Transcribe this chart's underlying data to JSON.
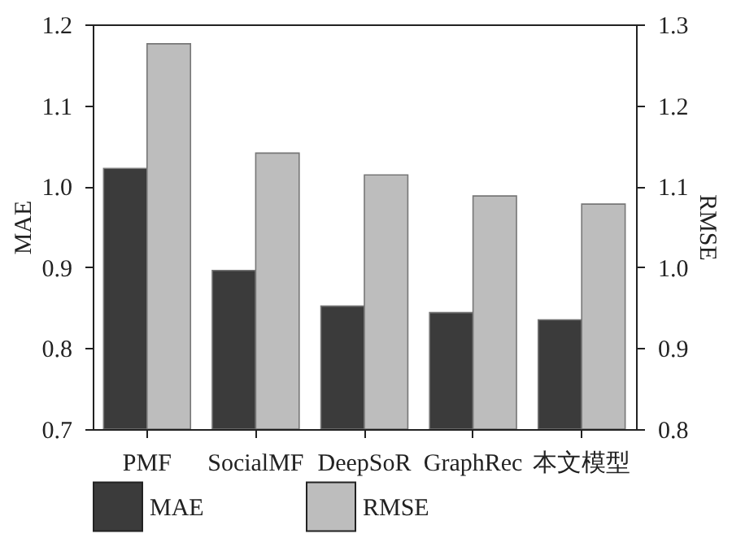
{
  "chart_data": {
    "type": "bar",
    "xlabel": null,
    "ylabel": "MAE",
    "y2label": "RMSE",
    "categories": [
      "PMF",
      "SocialMF",
      "DeepSoR",
      "GraphRec",
      "本文模型"
    ],
    "series": [
      {
        "name": "MAE",
        "color": "#3b3b3b",
        "values": [
          1.022,
          0.896,
          0.852,
          0.844,
          0.835
        ]
      },
      {
        "name": "RMSE",
        "color": "#bdbdbd",
        "axis": "y2",
        "values": [
          1.276,
          1.141,
          1.114,
          1.088,
          1.078
        ]
      }
    ],
    "ylim": [
      0.7,
      1.2
    ],
    "yticks": [
      0.7,
      0.8,
      0.9,
      {
        "value": 1,
        "label": "1.0"
      },
      1.1,
      1.2
    ],
    "y2lim": [
      0.8,
      1.3
    ],
    "y2ticks": [
      0.8,
      0.9,
      {
        "value": 1,
        "label": "1.0"
      },
      1.1,
      1.2,
      1.3
    ],
    "grid": false,
    "legend": "bottom"
  }
}
